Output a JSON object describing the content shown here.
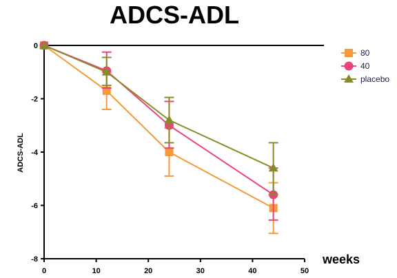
{
  "chart_data": {
    "type": "line",
    "title": "ADCS-ADL",
    "xlabel": "weeks",
    "ylabel": "ADCS-ADL",
    "xlim": [
      0,
      50
    ],
    "ylim": [
      -8,
      0
    ],
    "x_ticks": [
      0,
      10,
      20,
      30,
      40,
      50
    ],
    "y_ticks": [
      0,
      -2,
      -4,
      -6,
      -8
    ],
    "x_tick_labels": [
      "0",
      "10",
      "20",
      "30",
      "40",
      "50"
    ],
    "y_tick_labels": [
      "0",
      "-2",
      "-4",
      "-6",
      "-8"
    ],
    "grid": false,
    "legend_position": "top-right",
    "x": [
      0,
      12,
      24,
      44
    ],
    "series": [
      {
        "name": "80",
        "color": "#F59A3A",
        "marker": "square",
        "values": [
          0,
          -1.7,
          -4.0,
          -6.1
        ],
        "error_low": [
          0,
          -2.4,
          -4.9,
          -7.05
        ],
        "error_high": [
          0,
          -1.0,
          -3.1,
          -5.15
        ]
      },
      {
        "name": "40",
        "color": "#E8447A",
        "marker": "circle",
        "values": [
          0,
          -0.95,
          -3.0,
          -5.6
        ],
        "error_low": [
          0,
          -1.6,
          -3.85,
          -6.55
        ],
        "error_high": [
          0,
          -0.25,
          -2.1,
          -4.6
        ]
      },
      {
        "name": "placebo",
        "color": "#8A8A28",
        "marker": "triangle",
        "values": [
          0,
          -1.0,
          -2.8,
          -4.6
        ],
        "error_low": [
          0,
          -1.5,
          -3.65,
          -5.6
        ],
        "error_high": [
          0,
          -0.45,
          -1.95,
          -3.65
        ]
      }
    ]
  }
}
